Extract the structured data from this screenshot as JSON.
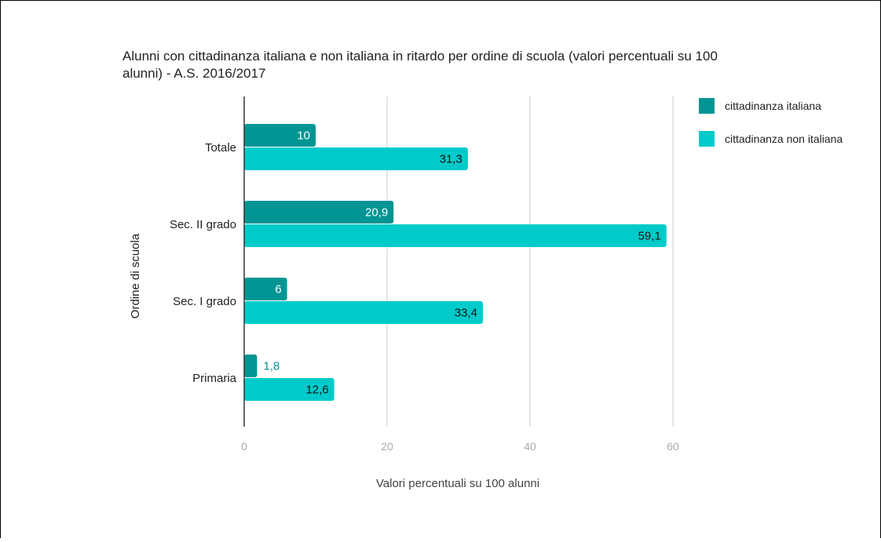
{
  "chart_data": {
    "type": "bar",
    "orientation": "horizontal",
    "title": "Alunni con cittadinanza italiana e non italiana in ritardo per ordine di scuola (valori percentuali su 100 alunni) - A.S. 2016/2017",
    "title_lines": [
      "Alunni con cittadinanza italiana e non italiana in ritardo per ordine di scuola (valori percentuali su 100",
      "alunni) - A.S. 2016/2017"
    ],
    "xlabel": "Valori percentuali su 100 alunni",
    "ylabel": "Ordine di scuola",
    "categories": [
      "Totale",
      "Sec. II grado",
      "Sec. I grado",
      "Primaria"
    ],
    "series": [
      {
        "name": "cittadinanza italiana",
        "color": "#009593",
        "values": [
          10,
          20.9,
          6,
          1.8
        ],
        "labels": [
          "10",
          "20,9",
          "6",
          "1,8"
        ]
      },
      {
        "name": "cittadinanza non italiana",
        "color": "#00cbca",
        "values": [
          31.3,
          59.1,
          33.4,
          12.6
        ],
        "labels": [
          "31,3",
          "59,1",
          "33,4",
          "12,6"
        ]
      }
    ],
    "xlim": [
      0,
      60
    ],
    "xticks": [
      0,
      20,
      40,
      60
    ],
    "xtick_labels": [
      "0",
      "20",
      "40",
      "60"
    ],
    "grid": true,
    "legend_position": "right"
  }
}
